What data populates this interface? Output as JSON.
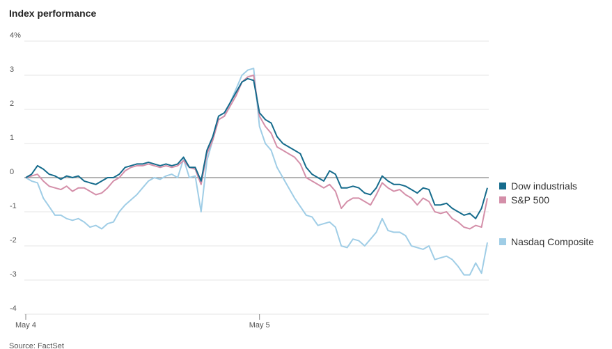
{
  "chart_data": {
    "type": "line",
    "title": "Index performance",
    "source": "Source: FactSet",
    "categories": [
      "May 4",
      null,
      null,
      null,
      null,
      null,
      null,
      null,
      null,
      null,
      null,
      null,
      null,
      null,
      null,
      null,
      null,
      null,
      null,
      null,
      null,
      null,
      null,
      null,
      null,
      null,
      null,
      null,
      null,
      null,
      null,
      null,
      null,
      null,
      null,
      null,
      null,
      null,
      null,
      null,
      "May 5",
      null,
      null,
      null,
      null,
      null,
      null,
      null,
      null,
      null,
      null,
      null,
      null,
      null,
      null,
      null,
      null,
      null,
      null,
      null,
      null,
      null,
      null,
      null,
      null,
      null,
      null,
      null,
      null,
      null,
      null,
      null,
      null,
      null,
      null,
      null,
      null,
      null,
      null,
      null
    ],
    "ylim": [
      -4,
      4
    ],
    "yticks": [
      -4,
      -3,
      -2,
      -1,
      0,
      1,
      2,
      3,
      {
        "value": 4,
        "label": "4%"
      }
    ],
    "grid": true,
    "series": [
      {
        "name": "Dow industrials",
        "color": "#156b8c",
        "values": [
          0,
          0.1,
          0.35,
          0.25,
          0.1,
          0.05,
          -0.05,
          0.05,
          0,
          0.05,
          -0.1,
          -0.15,
          -0.2,
          -0.1,
          0,
          0,
          0.1,
          0.3,
          0.35,
          0.4,
          0.4,
          0.45,
          0.4,
          0.35,
          0.4,
          0.35,
          0.4,
          0.6,
          0.3,
          0.3,
          -0.1,
          0.8,
          1.2,
          1.8,
          1.9,
          2.2,
          2.5,
          2.8,
          2.9,
          2.85,
          1.9,
          1.7,
          1.6,
          1.2,
          1.0,
          0.9,
          0.8,
          0.7,
          0.3,
          0.1,
          0,
          -0.1,
          0.2,
          0.1,
          -0.3,
          -0.3,
          -0.25,
          -0.3,
          -0.45,
          -0.5,
          -0.3,
          0.05,
          -0.1,
          -0.2,
          -0.2,
          -0.25,
          -0.35,
          -0.45,
          -0.3,
          -0.35,
          -0.8,
          -0.8,
          -0.75,
          -0.9,
          -1.0,
          -1.1,
          -1.05,
          -1.2,
          -0.9,
          -0.3
        ]
      },
      {
        "name": "S&P 500",
        "color": "#d48fa9",
        "values": [
          0,
          0.05,
          0.1,
          -0.1,
          -0.25,
          -0.3,
          -0.35,
          -0.25,
          -0.4,
          -0.3,
          -0.3,
          -0.4,
          -0.5,
          -0.45,
          -0.3,
          -0.1,
          0,
          0.2,
          0.3,
          0.35,
          0.35,
          0.4,
          0.35,
          0.3,
          0.35,
          0.3,
          0.35,
          0.5,
          0.3,
          0.25,
          -0.2,
          0.7,
          1.1,
          1.7,
          1.8,
          2.1,
          2.4,
          2.8,
          2.95,
          3.0,
          1.8,
          1.5,
          1.3,
          0.9,
          0.8,
          0.7,
          0.6,
          0.4,
          0,
          -0.1,
          -0.2,
          -0.3,
          -0.2,
          -0.4,
          -0.9,
          -0.7,
          -0.6,
          -0.6,
          -0.7,
          -0.8,
          -0.5,
          -0.15,
          -0.3,
          -0.4,
          -0.35,
          -0.5,
          -0.6,
          -0.8,
          -0.6,
          -0.7,
          -1.0,
          -1.05,
          -1.0,
          -1.2,
          -1.3,
          -1.45,
          -1.5,
          -1.4,
          -1.45,
          -0.6
        ]
      },
      {
        "name": "Nasdaq Composite",
        "color": "#9fcde6",
        "values": [
          0,
          -0.1,
          -0.15,
          -0.6,
          -0.85,
          -1.1,
          -1.1,
          -1.2,
          -1.25,
          -1.2,
          -1.3,
          -1.45,
          -1.4,
          -1.5,
          -1.35,
          -1.3,
          -1.0,
          -0.8,
          -0.65,
          -0.5,
          -0.3,
          -0.1,
          0,
          -0.05,
          0.05,
          0.1,
          0,
          0.55,
          0,
          0.05,
          -1.0,
          0.5,
          1.1,
          1.7,
          1.8,
          2.2,
          2.6,
          3.0,
          3.15,
          3.2,
          1.5,
          1.0,
          0.8,
          0.3,
          0,
          -0.3,
          -0.6,
          -0.85,
          -1.1,
          -1.15,
          -1.4,
          -1.35,
          -1.3,
          -1.45,
          -2.0,
          -2.05,
          -1.8,
          -1.85,
          -2.0,
          -1.8,
          -1.6,
          -1.2,
          -1.55,
          -1.6,
          -1.6,
          -1.7,
          -2.0,
          -2.05,
          -2.1,
          -2.0,
          -2.4,
          -2.35,
          -2.3,
          -2.4,
          -2.6,
          -2.85,
          -2.85,
          -2.5,
          -2.8,
          -1.9
        ]
      }
    ]
  }
}
